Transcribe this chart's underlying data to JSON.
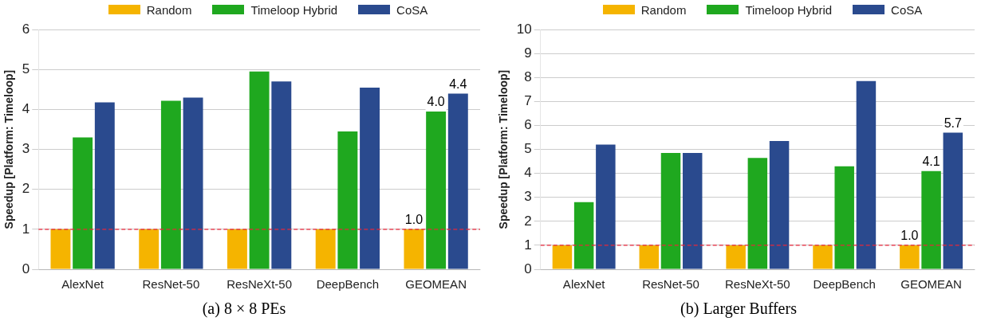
{
  "chart_data": [
    {
      "type": "bar",
      "title": "(a) 8 × 8 PEs",
      "ylabel": "Speedup [Platform: Timeloop]",
      "categories": [
        "AlexNet",
        "ResNet-50",
        "ResNeXt-50",
        "DeepBench",
        "GEOMEAN"
      ],
      "ylim": [
        0,
        6
      ],
      "yticks": [
        0,
        1,
        2,
        3,
        4,
        5,
        6
      ],
      "grid": "y",
      "legend": "top",
      "ref_lines": [
        {
          "axis": "y",
          "value": 1,
          "color": "#e8263a",
          "line_style": "dashed"
        }
      ],
      "series": [
        {
          "name": "Random",
          "color": "#f5b400",
          "values": [
            1.0,
            1.0,
            1.0,
            1.0,
            1.0
          ],
          "value_labels": [
            null,
            null,
            null,
            null,
            "1.0"
          ]
        },
        {
          "name": "Timeloop Hybrid",
          "color": "#1fa81f",
          "values": [
            3.3,
            4.22,
            4.95,
            3.45,
            3.95
          ],
          "value_labels": [
            null,
            null,
            null,
            null,
            "4.0"
          ]
        },
        {
          "name": "CoSA",
          "color": "#2a4a8e",
          "values": [
            4.18,
            4.3,
            4.7,
            4.55,
            4.4
          ],
          "value_labels": [
            null,
            null,
            null,
            null,
            "4.4"
          ]
        }
      ]
    },
    {
      "type": "bar",
      "title": "(b) Larger Buffers",
      "ylabel": "Speedup [Platform: Timeloop]",
      "categories": [
        "AlexNet",
        "ResNet-50",
        "ResNeXt-50",
        "DeepBench",
        "GEOMEAN"
      ],
      "ylim": [
        0,
        10
      ],
      "yticks": [
        0,
        1,
        2,
        3,
        4,
        5,
        6,
        7,
        8,
        9,
        10
      ],
      "grid": "y",
      "legend": "top",
      "ref_lines": [
        {
          "axis": "y",
          "value": 1,
          "color": "#e8263a",
          "line_style": "dashed"
        }
      ],
      "series": [
        {
          "name": "Random",
          "color": "#f5b400",
          "values": [
            1.0,
            1.0,
            1.0,
            1.0,
            1.0
          ],
          "value_labels": [
            null,
            null,
            null,
            null,
            "1.0"
          ]
        },
        {
          "name": "Timeloop Hybrid",
          "color": "#1fa81f",
          "values": [
            2.8,
            4.85,
            4.65,
            4.3,
            4.1
          ],
          "value_labels": [
            null,
            null,
            null,
            null,
            "4.1"
          ]
        },
        {
          "name": "CoSA",
          "color": "#2a4a8e",
          "values": [
            5.2,
            4.85,
            5.35,
            7.85,
            5.7
          ],
          "value_labels": [
            null,
            null,
            null,
            null,
            "5.7"
          ]
        }
      ]
    }
  ]
}
